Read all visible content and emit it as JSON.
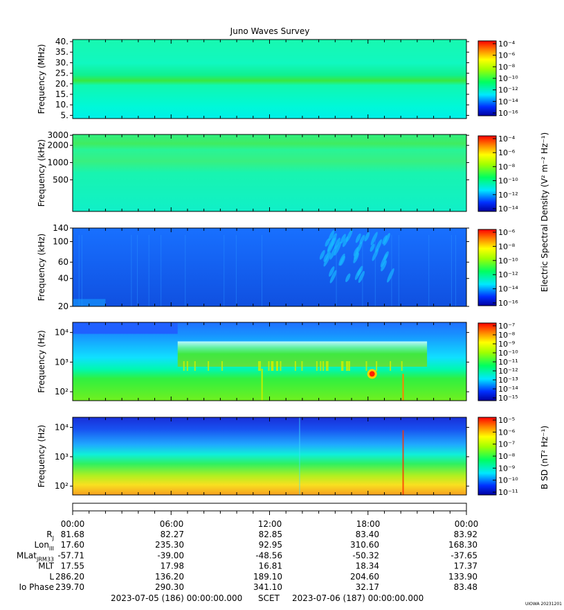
{
  "title": "Juno Waves Survey",
  "footer": {
    "start": "2023-07-05 (186) 00:00:00.000",
    "scet": "SCET",
    "end": "2023-07-06 (187) 00:00:00.000",
    "credit": "UIOWA 20231201"
  },
  "colorbar_labels": {
    "electric": "Electric Spectral Density (V² m⁻² Hz⁻¹)",
    "magnetic": "B SD (nT² Hz⁻¹)"
  },
  "chart_data": [
    {
      "type": "heatmap",
      "ylabel": "Frequency (MHz)",
      "yscale": "linear",
      "ylim": [
        3.5,
        41
      ],
      "yticks": [
        "40.",
        "35.",
        "30.",
        "25.",
        "20.",
        "15.",
        "10.",
        "5."
      ],
      "yticks_values": [
        40,
        35,
        30,
        25,
        20,
        15,
        10,
        5
      ],
      "colorbar": {
        "ticks": [
          "10⁻⁴",
          "10⁻⁶",
          "10⁻⁸",
          "10⁻¹⁰",
          "10⁻¹²",
          "10⁻¹⁴",
          "10⁻¹⁶"
        ]
      },
      "features": [
        "uniform background near 10^-12",
        "persistent band at ~21 MHz"
      ]
    },
    {
      "type": "heatmap",
      "ylabel": "Frequency (kHz)",
      "yscale": "log",
      "ylim": [
        140,
        3100
      ],
      "yticks": [
        "3000",
        "2000",
        "1000",
        "500"
      ],
      "yticks_values": [
        3000,
        2000,
        1000,
        500
      ],
      "colorbar": {
        "ticks": [
          "10⁻⁴",
          "10⁻⁶",
          "10⁻⁸",
          "10⁻¹⁰",
          "10⁻¹²",
          "10⁻¹⁴"
        ]
      },
      "features": [
        "uniform background",
        "bands near 2000 kHz and 1000 kHz"
      ]
    },
    {
      "type": "heatmap",
      "ylabel": "Frequency (kHz)",
      "yscale": "log",
      "ylim": [
        20,
        140
      ],
      "yticks": [
        "140",
        "100",
        "60",
        "40",
        "20"
      ],
      "yticks_values": [
        140,
        100,
        60,
        40,
        20
      ],
      "colorbar": {
        "ticks": [
          "10⁻⁶",
          "10⁻⁸",
          "10⁻¹⁰",
          "10⁻¹²",
          "10⁻¹⁴",
          "10⁻¹⁶"
        ]
      },
      "features": [
        "blue background",
        "cyan streaks between 15:00 and 19:00"
      ]
    },
    {
      "type": "heatmap",
      "ylabel": "Frequency (Hz)",
      "yscale": "log",
      "ylim": [
        50,
        22000
      ],
      "yticks": [
        "10⁴",
        "10³",
        "10²"
      ],
      "yticks_values": [
        10000,
        1000,
        100
      ],
      "colorbar": {
        "ticks": [
          "10⁻⁷",
          "10⁻⁸",
          "10⁻⁹",
          "10⁻¹⁰",
          "10⁻¹¹",
          "10⁻¹²",
          "10⁻¹³",
          "10⁻¹⁴",
          "10⁻¹⁵"
        ]
      },
      "features": [
        "green emission band from ~06:30 to ~21:30",
        "red spot near 18:15 at ~400 Hz"
      ]
    },
    {
      "type": "heatmap",
      "ylabel": "Frequency (Hz)",
      "yscale": "log",
      "ylim": [
        50,
        22000
      ],
      "yticks": [
        "10⁴",
        "10³",
        "10²"
      ],
      "yticks_values": [
        10000,
        1000,
        100
      ],
      "colorbar": {
        "ticks": [
          "10⁻⁵",
          "10⁻⁶",
          "10⁻⁷",
          "10⁻⁸",
          "10⁻⁹",
          "10⁻¹⁰",
          "10⁻¹¹"
        ]
      },
      "features": [
        "blue at high frequency grading to orange at low frequency",
        "spike near 20:10"
      ]
    }
  ],
  "ephemeris": {
    "columns": [
      "00:00",
      "06:00",
      "12:00",
      "18:00",
      "00:00"
    ],
    "rows": [
      {
        "label": "R",
        "sub": "J",
        "values": [
          "81.68",
          "82.27",
          "82.85",
          "83.40",
          "83.92"
        ]
      },
      {
        "label": "Lon",
        "sub": "III",
        "values": [
          "17.60",
          "235.30",
          "92.95",
          "310.60",
          "168.30"
        ]
      },
      {
        "label": "MLat",
        "sub": "JRM33",
        "values": [
          "-57.71",
          "-39.00",
          "-48.56",
          "-50.32",
          "-37.65"
        ]
      },
      {
        "label": "MLT",
        "sub": "",
        "values": [
          "17.55",
          "17.98",
          "16.81",
          "18.34",
          "17.37"
        ]
      },
      {
        "label": "L",
        "sub": "",
        "values": [
          "286.20",
          "136.20",
          "189.10",
          "204.60",
          "133.90"
        ]
      },
      {
        "label": "Io Phase",
        "sub": "",
        "values": [
          "239.70",
          "290.30",
          "341.10",
          "32.17",
          "83.48"
        ]
      }
    ]
  }
}
